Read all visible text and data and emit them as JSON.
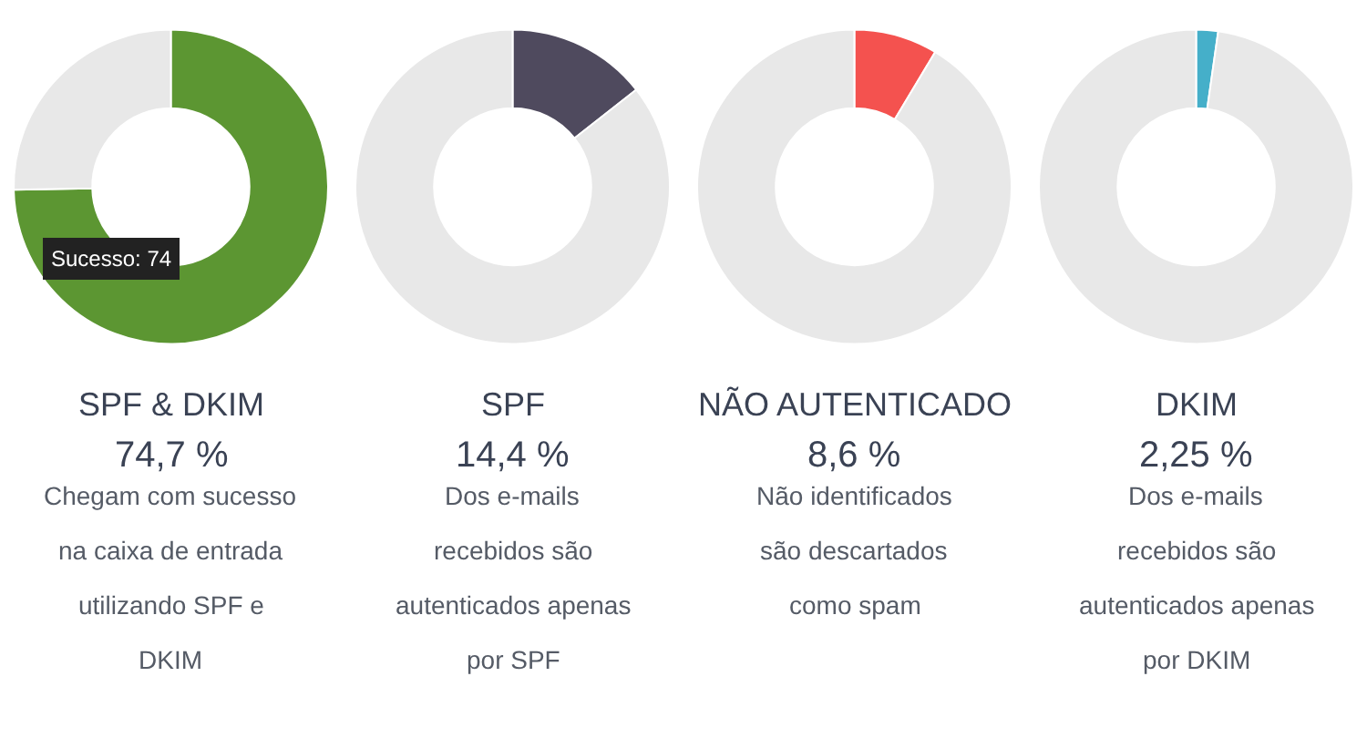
{
  "chart_data": [
    {
      "type": "donut",
      "title": "SPF & DKIM",
      "subtitle": "74,7 %",
      "categories": [
        null,
        null
      ],
      "values": [
        74.7,
        25.3
      ],
      "colors": [
        "#5c9632",
        "#e8e8e8"
      ],
      "annotations": [
        "Chegam com sucesso na caixa de entrada utilizando SPF e DKIM",
        "Sucesso: 74"
      ]
    },
    {
      "type": "donut",
      "title": "SPF",
      "subtitle": "14,4 %",
      "categories": [
        null,
        null
      ],
      "values": [
        14.4,
        85.6
      ],
      "colors": [
        "#4f4a5e",
        "#e8e8e8"
      ],
      "annotations": [
        "Dos e-mails recebidos são autenticados apenas por SPF"
      ]
    },
    {
      "type": "donut",
      "title": "NÃO AUTENTICADO",
      "subtitle": "8,6 %",
      "categories": [
        null,
        null
      ],
      "values": [
        8.6,
        91.4
      ],
      "colors": [
        "#f4524f",
        "#e8e8e8"
      ],
      "annotations": [
        "Não identificados são descartados como spam"
      ]
    },
    {
      "type": "donut",
      "title": "DKIM",
      "subtitle": "2,25 %",
      "categories": [
        null,
        null
      ],
      "values": [
        2.25,
        97.75
      ],
      "colors": [
        "#45afc9",
        "#e8e8e8"
      ],
      "annotations": [
        "Dos e-mails recebidos são autenticados apenas por DKIM"
      ]
    }
  ]
}
